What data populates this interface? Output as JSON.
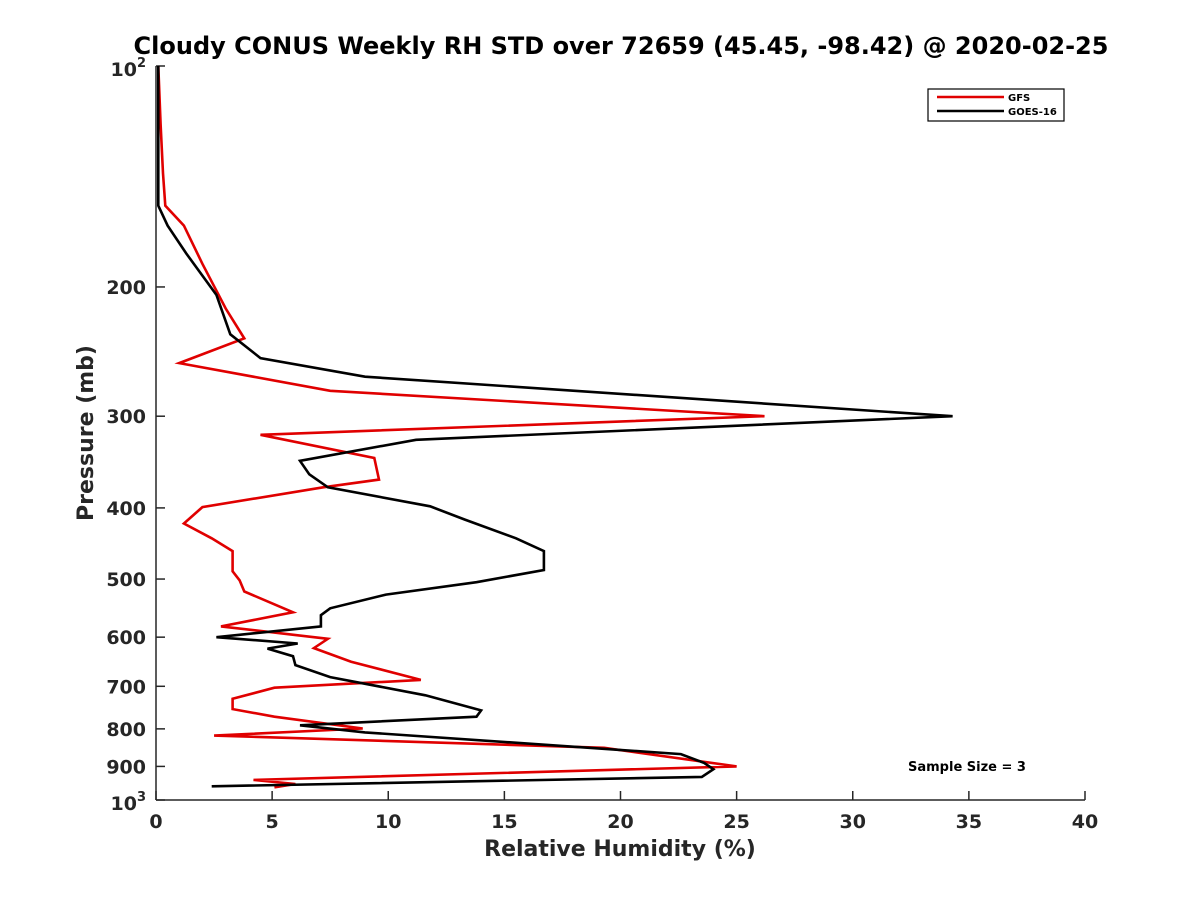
{
  "chart_data": {
    "type": "line",
    "title": "Cloudy CONUS Weekly RH STD over 72659 (45.45, -98.42) @ 2020-02-25",
    "xlabel": "Relative Humidity (%)",
    "ylabel": "Pressure (mb)",
    "xlim": [
      0,
      40
    ],
    "ylim": [
      100,
      1000
    ],
    "y_scale": "log",
    "y_reversed": true,
    "x_ticks": [
      "0",
      "5",
      "10",
      "15",
      "20",
      "25",
      "30",
      "35",
      "40"
    ],
    "y_ticks": [
      {
        "value": 100,
        "base": "10",
        "exp": "2"
      },
      {
        "value": 200,
        "base": "200",
        "exp": ""
      },
      {
        "value": 300,
        "base": "300",
        "exp": ""
      },
      {
        "value": 400,
        "base": "400",
        "exp": ""
      },
      {
        "value": 500,
        "base": "500",
        "exp": ""
      },
      {
        "value": 600,
        "base": "600",
        "exp": ""
      },
      {
        "value": 700,
        "base": "700",
        "exp": ""
      },
      {
        "value": 800,
        "base": "800",
        "exp": ""
      },
      {
        "value": 900,
        "base": "900",
        "exp": ""
      },
      {
        "value": 1000,
        "base": "10",
        "exp": "3"
      }
    ],
    "legend_position": "top-right",
    "grid": false,
    "annotation": "Sample Size = 3",
    "series": [
      {
        "name": "GFS",
        "color": "#e00000",
        "x": [
          0.1,
          0.2,
          0.3,
          0.4,
          1.2,
          2.0,
          3.0,
          3.8,
          1.0,
          7.5,
          26.2,
          4.5,
          9.4,
          9.6,
          7.2,
          2.0,
          1.2,
          2.4,
          3.3,
          3.3,
          3.6,
          3.8,
          5.9,
          2.8,
          7.4,
          6.8,
          8.4,
          11.4,
          5.1,
          3.3,
          3.3,
          5.1,
          8.9,
          2.5,
          19.3,
          25.0,
          4.2,
          6.0,
          5.1
        ],
        "y": [
          100,
          120,
          140,
          155,
          165,
          186,
          214,
          235,
          254,
          277,
          300,
          318,
          342,
          366,
          375,
          399,
          420,
          440,
          458,
          488,
          502,
          520,
          555,
          580,
          603,
          621,
          648,
          686,
          703,
          728,
          752,
          770,
          799,
          817,
          849,
          900,
          939,
          951,
          961
        ]
      },
      {
        "name": "GOES-16",
        "color": "#000000",
        "x": [
          0.1,
          0.1,
          0.1,
          0.1,
          0.5,
          1.3,
          2.6,
          3.2,
          4.5,
          9.0,
          34.3,
          11.2,
          6.2,
          6.6,
          7.4,
          11.8,
          13.3,
          15.5,
          16.7,
          16.7,
          13.8,
          9.9,
          7.5,
          7.1,
          7.1,
          2.6,
          6.1,
          4.8,
          5.9,
          6.0,
          7.5,
          11.6,
          14.0,
          13.8,
          6.2,
          9.0,
          22.6,
          23.6,
          24.0,
          23.5,
          2.4
        ],
        "y": [
          100,
          120,
          140,
          155,
          165,
          180,
          205,
          232,
          250,
          265,
          300,
          323,
          345,
          360,
          375,
          398,
          415,
          440,
          458,
          486,
          505,
          525,
          548,
          560,
          580,
          600,
          612,
          622,
          637,
          655,
          680,
          720,
          755,
          770,
          791,
          809,
          866,
          890,
          908,
          930,
          958
        ]
      }
    ]
  }
}
